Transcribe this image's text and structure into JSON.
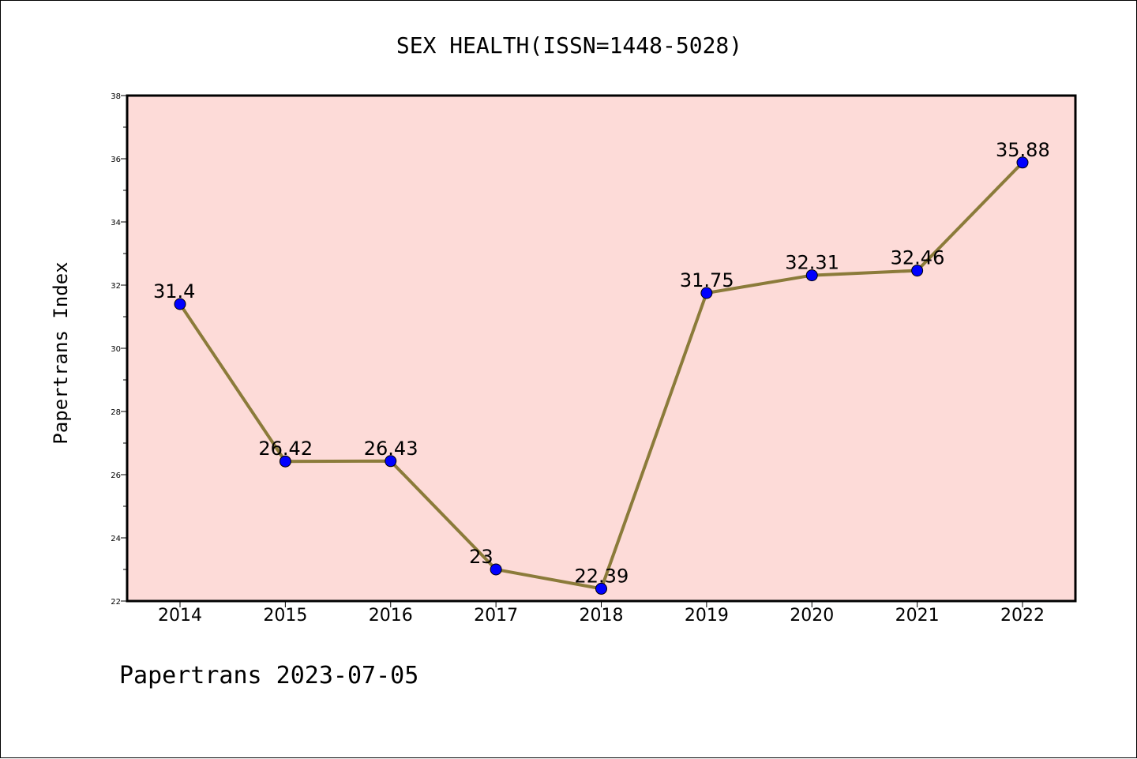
{
  "chart_data": {
    "type": "line",
    "title": "SEX HEALTH(ISSN=1448-5028)",
    "xlabel": "",
    "ylabel": "Papertrans Index",
    "categories": [
      "2014",
      "2015",
      "2016",
      "2017",
      "2018",
      "2019",
      "2020",
      "2021",
      "2022"
    ],
    "series": [
      {
        "values": [
          31.4,
          26.42,
          26.43,
          23,
          22.39,
          31.75,
          32.31,
          32.46,
          35.88
        ],
        "data_labels": [
          "31.4",
          "26.42",
          "26.43",
          "23",
          "22.39",
          "31.75",
          "32.31",
          "32.46",
          "35.88"
        ]
      }
    ],
    "ylim": [
      22,
      38
    ],
    "yticks": [
      "22",
      "24",
      "26",
      "28",
      "30",
      "32",
      "34",
      "36",
      "38"
    ],
    "grid": false,
    "line_color": "#8b7b3a",
    "marker_color": "#0000ff",
    "plot_background": "#fddbd8"
  },
  "footer": "Papertrans 2023-07-05"
}
